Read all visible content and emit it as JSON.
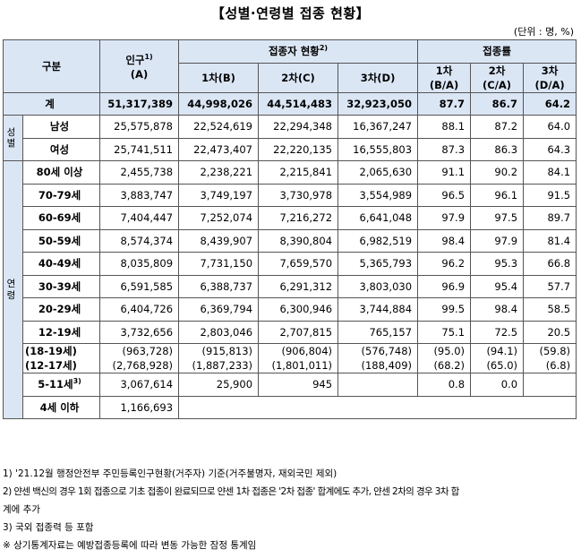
{
  "title": "【성별·연령별 접종 현황】",
  "unit": "(단위 : 명, %)",
  "header": {
    "category": "구분",
    "population": "인구",
    "population_sup": "1)",
    "population_sub": "(A)",
    "vaccinated": "접종자 현황",
    "vaccinated_sup": "2)",
    "rate": "접종률",
    "dose1": "1차(B)",
    "dose2": "2차(C)",
    "dose3": "3차(D)",
    "r1_a": "1차",
    "r1_b": "(B/A)",
    "r2_a": "2차",
    "r2_b": "(C/A)",
    "r3_a": "3차",
    "r3_b": "(D/A)"
  },
  "side": {
    "sex": "성\n별",
    "age": "연\n령"
  },
  "total": {
    "label": "계",
    "pop": "51,317,389",
    "d1": "44,998,026",
    "d2": "44,514,483",
    "d3": "32,923,050",
    "r1": "87.7",
    "r2": "86.7",
    "r3": "64.2"
  },
  "sex": [
    {
      "label": "남성",
      "pop": "25,575,878",
      "d1": "22,524,619",
      "d2": "22,294,348",
      "d3": "16,367,247",
      "r1": "88.1",
      "r2": "87.2",
      "r3": "64.0"
    },
    {
      "label": "여성",
      "pop": "25,741,511",
      "d1": "22,473,407",
      "d2": "22,220,135",
      "d3": "16,555,803",
      "r1": "87.3",
      "r2": "86.3",
      "r3": "64.3"
    }
  ],
  "age": [
    {
      "label": "80세 이상",
      "pop": "2,455,738",
      "d1": "2,238,221",
      "d2": "2,215,841",
      "d3": "2,065,630",
      "r1": "91.1",
      "r2": "90.2",
      "r3": "84.1"
    },
    {
      "label": "70-79세",
      "pop": "3,883,747",
      "d1": "3,749,197",
      "d2": "3,730,978",
      "d3": "3,554,989",
      "r1": "96.5",
      "r2": "96.1",
      "r3": "91.5"
    },
    {
      "label": "60-69세",
      "pop": "7,404,447",
      "d1": "7,252,074",
      "d2": "7,216,272",
      "d3": "6,641,048",
      "r1": "97.9",
      "r2": "97.5",
      "r3": "89.7"
    },
    {
      "label": "50-59세",
      "pop": "8,574,374",
      "d1": "8,439,907",
      "d2": "8,390,804",
      "d3": "6,982,519",
      "r1": "98.4",
      "r2": "97.9",
      "r3": "81.4"
    },
    {
      "label": "40-49세",
      "pop": "8,035,809",
      "d1": "7,731,150",
      "d2": "7,659,570",
      "d3": "5,365,793",
      "r1": "96.2",
      "r2": "95.3",
      "r3": "66.8"
    },
    {
      "label": "30-39세",
      "pop": "6,591,585",
      "d1": "6,388,737",
      "d2": "6,291,312",
      "d3": "3,803,030",
      "r1": "96.9",
      "r2": "95.4",
      "r3": "57.7"
    },
    {
      "label": "20-29세",
      "pop": "6,404,726",
      "d1": "6,369,794",
      "d2": "6,300,946",
      "d3": "3,744,884",
      "r1": "99.5",
      "r2": "98.4",
      "r3": "58.5"
    },
    {
      "label": "12-19세",
      "pop": "3,732,656",
      "d1": "2,803,046",
      "d2": "2,707,815",
      "d3": "765,157",
      "r1": "75.1",
      "r2": "72.5",
      "r3": "20.5"
    }
  ],
  "teen": [
    {
      "label": "(18-19세)",
      "pop": "(963,728)",
      "d1": "(915,813)",
      "d2": "(906,804)",
      "d3": "(576,748)",
      "r1": "(95.0)",
      "r2": "(94.1)",
      "r3": "(59.8)"
    },
    {
      "label": "(12-17세)",
      "pop": "(2,768,928)",
      "d1": "(1,887,233)",
      "d2": "(1,801,011)",
      "d3": "(188,409)",
      "r1": "(68.2)",
      "r2": "(65.0)",
      "r3": "(6.8)"
    }
  ],
  "child": {
    "label": "5-11세",
    "label_sup": "3)",
    "pop": "3,067,614",
    "d1": "25,900",
    "d2": "945",
    "d3": "",
    "r1": "0.8",
    "r2": "0.0",
    "r3": ""
  },
  "infant": {
    "label": "4세 이하",
    "pop": "1,166,693"
  },
  "notes": {
    "n1": "1) '21.12월 행정안전부 주민등록인구현황(거주자) 기준(거주불명자, 재외국민 제외)",
    "n2": "2) 얀센 백신의 경우 1회 접종으로 기초 접종이 완료되므로 얀센 1차 접종은 '2차 접종' 합계에도 추가, 얀센 2차의 경우 3차 합",
    "n2b": "계에 추가",
    "n3": "3) 국외 접종력 등 포함",
    "n4": "※ 상기통계자료는 예방접종등록에 따라 변동 가능한 잠정 통계임"
  }
}
